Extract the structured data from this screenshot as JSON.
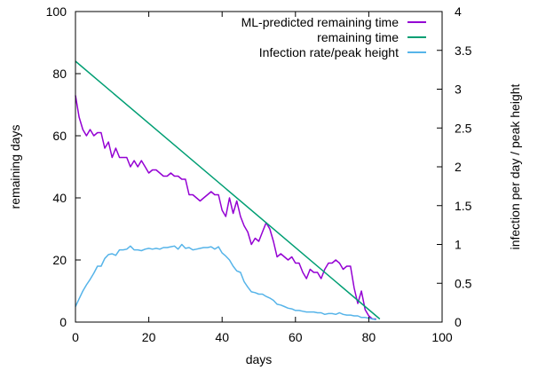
{
  "chart_data": {
    "type": "line",
    "title": "",
    "xlabel": "days",
    "ylabel": "remaining days",
    "y2label": "infection per day / peak height",
    "xlim": [
      0,
      100
    ],
    "ylim": [
      0,
      100
    ],
    "y2lim": [
      0,
      4
    ],
    "x_ticks": [
      0,
      20,
      40,
      60,
      80,
      100
    ],
    "y_ticks": [
      0,
      20,
      40,
      60,
      80,
      100
    ],
    "y2_ticks": [
      "0",
      "0.5",
      "1",
      "1.5",
      "2",
      "2.5",
      "3",
      "3.5",
      "4"
    ],
    "grid": false,
    "legend_position": "top-right",
    "series": [
      {
        "name": "ML-predicted remaining time",
        "color": "#9400d3",
        "axis": "left",
        "x": [
          0,
          1,
          2,
          3,
          4,
          5,
          6,
          7,
          8,
          9,
          10,
          11,
          12,
          13,
          14,
          15,
          16,
          17,
          18,
          19,
          20,
          21,
          22,
          23,
          24,
          25,
          26,
          27,
          28,
          29,
          30,
          31,
          32,
          33,
          34,
          35,
          36,
          37,
          38,
          39,
          40,
          41,
          42,
          43,
          44,
          45,
          46,
          47,
          48,
          49,
          50,
          51,
          52,
          53,
          54,
          55,
          56,
          57,
          58,
          59,
          60,
          61,
          62,
          63,
          64,
          65,
          66,
          67,
          68,
          69,
          70,
          71,
          72,
          73,
          74,
          75,
          76,
          77,
          78,
          79,
          80,
          81,
          82
        ],
        "y": [
          73,
          66,
          62,
          60,
          62,
          60,
          61,
          61,
          56,
          58,
          53,
          56,
          53,
          53,
          53,
          50,
          52,
          50,
          52,
          50,
          48,
          49,
          49,
          48,
          47,
          47,
          48,
          47,
          47,
          46,
          46,
          41,
          41,
          40,
          39,
          40,
          41,
          42,
          41,
          41,
          36,
          34,
          40,
          35,
          39,
          34,
          31,
          29,
          25,
          27,
          26,
          29,
          32,
          30,
          26,
          21,
          22,
          21,
          20,
          21,
          19,
          19,
          16,
          14,
          17,
          16,
          16,
          14,
          17,
          19,
          19,
          20,
          19,
          17,
          18,
          18,
          11,
          6,
          10,
          4,
          2,
          1,
          1
        ]
      },
      {
        "name": "remaining time",
        "color": "#009e73",
        "axis": "left",
        "x": [
          0,
          83
        ],
        "y": [
          84,
          1
        ]
      },
      {
        "name": "Infection rate/peak height",
        "color": "#56b4e9",
        "axis": "right",
        "x": [
          0,
          1,
          2,
          3,
          4,
          5,
          6,
          7,
          8,
          9,
          10,
          11,
          12,
          13,
          14,
          15,
          16,
          17,
          18,
          19,
          20,
          21,
          22,
          23,
          24,
          25,
          26,
          27,
          28,
          29,
          30,
          31,
          32,
          33,
          34,
          35,
          36,
          37,
          38,
          39,
          40,
          41,
          42,
          43,
          44,
          45,
          46,
          47,
          48,
          49,
          50,
          51,
          52,
          53,
          54,
          55,
          56,
          57,
          58,
          59,
          60,
          61,
          62,
          63,
          64,
          65,
          66,
          67,
          68,
          69,
          70,
          71,
          72,
          73,
          74,
          75,
          76,
          77,
          78,
          79,
          80,
          81,
          82
        ],
        "y": [
          0.2,
          0.3,
          0.4,
          0.48,
          0.55,
          0.63,
          0.72,
          0.72,
          0.82,
          0.87,
          0.88,
          0.86,
          0.93,
          0.93,
          0.94,
          0.98,
          0.93,
          0.93,
          0.92,
          0.94,
          0.95,
          0.94,
          0.95,
          0.94,
          0.96,
          0.96,
          0.97,
          0.98,
          0.94,
          1.0,
          0.95,
          0.96,
          0.93,
          0.94,
          0.95,
          0.96,
          0.96,
          0.97,
          0.94,
          0.97,
          0.89,
          0.85,
          0.8,
          0.72,
          0.66,
          0.64,
          0.52,
          0.45,
          0.39,
          0.38,
          0.36,
          0.36,
          0.33,
          0.31,
          0.28,
          0.23,
          0.22,
          0.2,
          0.18,
          0.17,
          0.15,
          0.15,
          0.14,
          0.13,
          0.13,
          0.13,
          0.12,
          0.12,
          0.1,
          0.11,
          0.11,
          0.1,
          0.12,
          0.1,
          0.09,
          0.09,
          0.08,
          0.08,
          0.06,
          0.06,
          0.05,
          0.04,
          0.03
        ]
      }
    ]
  }
}
